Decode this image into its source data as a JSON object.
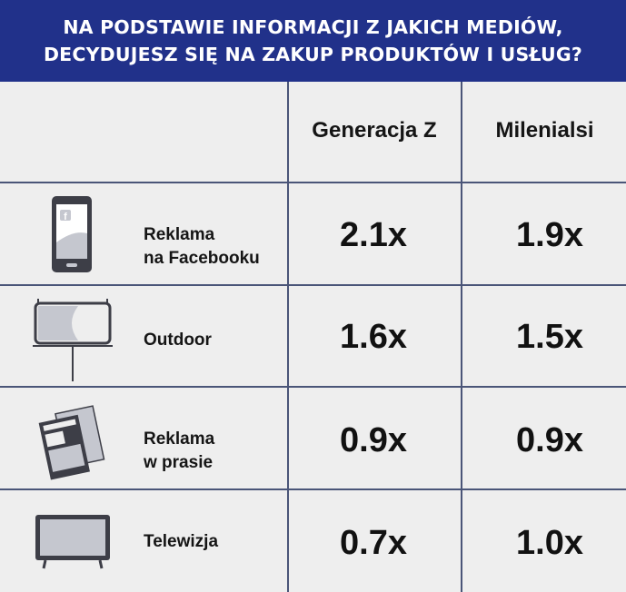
{
  "title": {
    "line1": "NA PODSTAWIE INFORMACJI Z JAKICH MEDIÓW,",
    "line2": "DECYDUJESZ SIĘ NA ZAKUP PRODUKTÓW I USŁUG?"
  },
  "columns": [
    "Generacja Z",
    "Milenialsi"
  ],
  "rows": [
    {
      "label": "Reklama\nna Facebooku",
      "icon": "smartphone-facebook-icon",
      "values": [
        "2.1x",
        "1.9x"
      ]
    },
    {
      "label": "Outdoor",
      "icon": "billboard-icon",
      "values": [
        "1.6x",
        "1.5x"
      ]
    },
    {
      "label": "Reklama\nw prasie",
      "icon": "newspaper-icon",
      "values": [
        "0.9x",
        "0.9x"
      ]
    },
    {
      "label": "Telewizja",
      "icon": "television-icon",
      "values": [
        "0.7x",
        "1.0x"
      ]
    }
  ],
  "chart_data": {
    "type": "table",
    "title": "NA PODSTAWIE INFORMACJI Z JAKICH MEDIÓW, DECYDUJESZ SIĘ NA ZAKUP PRODUKTÓW I USŁUG?",
    "categories": [
      "Reklama na Facebooku",
      "Outdoor",
      "Reklama w prasie",
      "Telewizja"
    ],
    "series": [
      {
        "name": "Generacja Z",
        "values": [
          2.1,
          1.6,
          0.9,
          0.7
        ]
      },
      {
        "name": "Milenialsi",
        "values": [
          1.9,
          1.5,
          0.9,
          1.0
        ]
      }
    ]
  },
  "colors": {
    "header_bg": "#21318a",
    "header_text": "#ffffff",
    "grid_line": "#4a5578",
    "background": "#eeeeee",
    "icon_dark": "#3d3e47",
    "icon_light": "#c5c7cf"
  }
}
